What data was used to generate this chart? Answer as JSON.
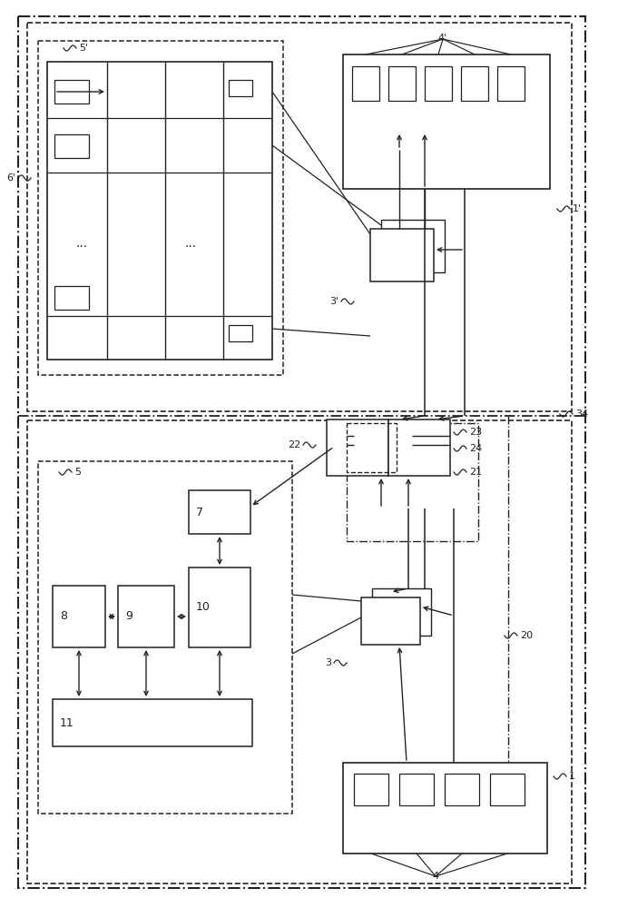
{
  "bg_color": "#ffffff",
  "line_color": "#222222",
  "fig_width": 6.81,
  "fig_height": 10.0,
  "dpi": 100
}
